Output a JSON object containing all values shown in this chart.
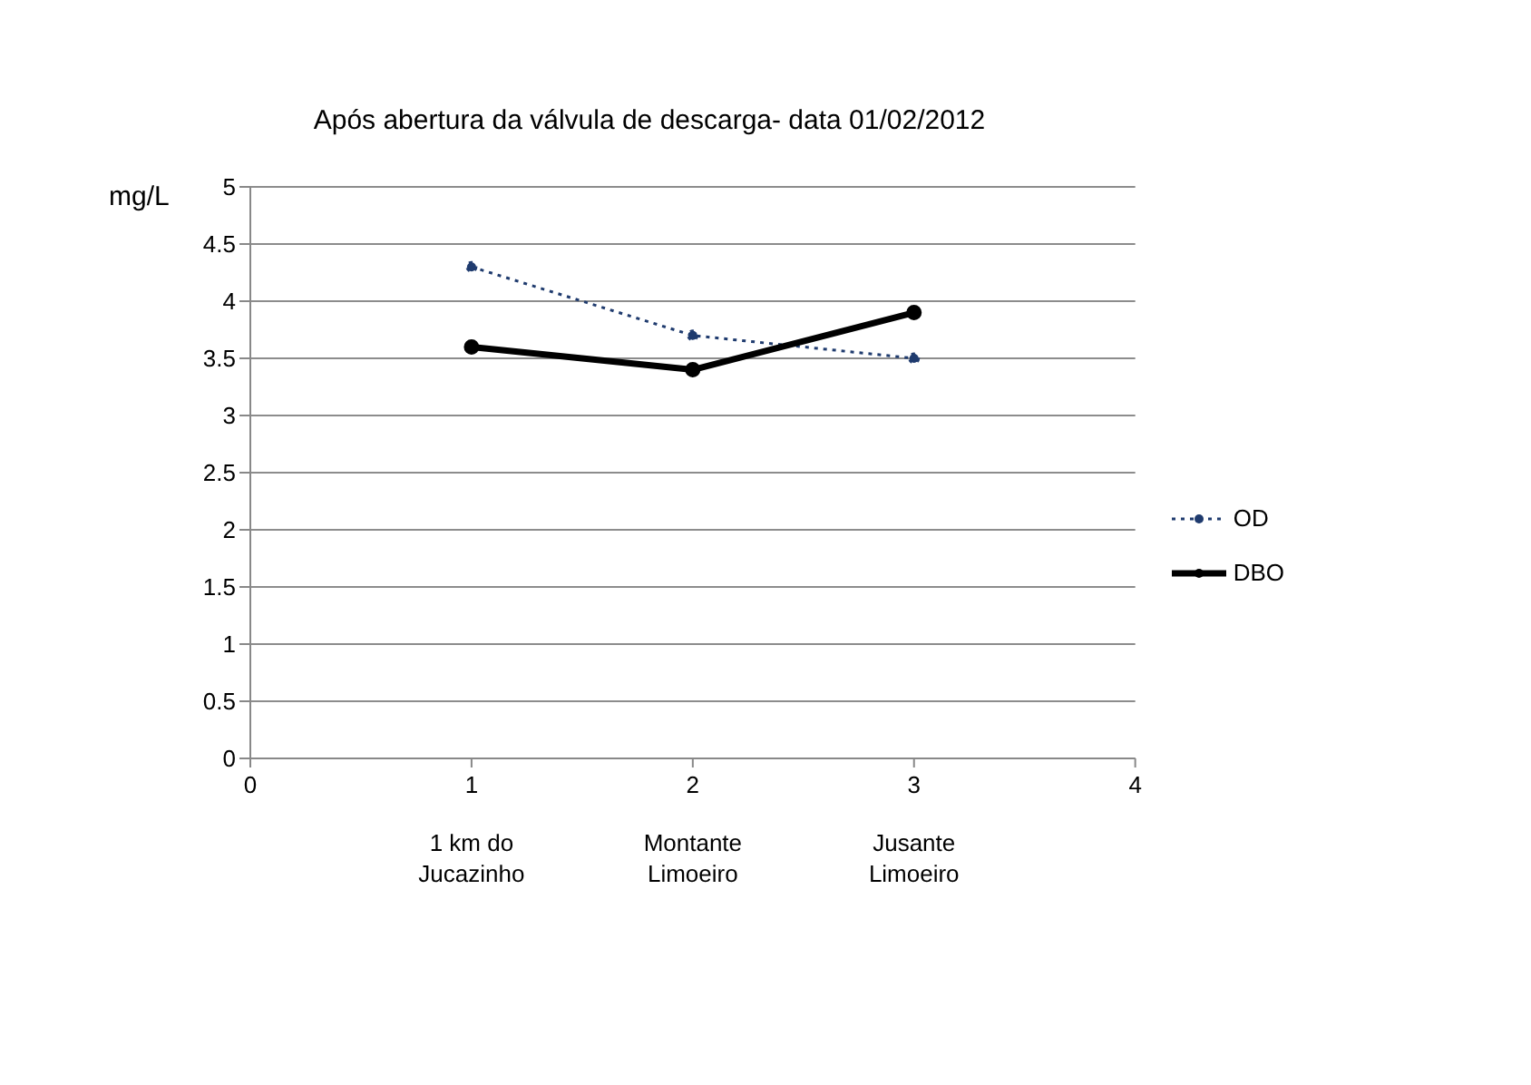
{
  "chart_data": {
    "type": "line",
    "title": "Após abertura da válvula de descarga- data 01/02/2012",
    "ylabel": "mg/L",
    "x": [
      1,
      2,
      3
    ],
    "series": [
      {
        "name": "OD",
        "color": "#1f3b6e",
        "values": [
          4.3,
          3.7,
          3.5
        ],
        "line_style": "dotted",
        "marker": "circle"
      },
      {
        "name": "DBO",
        "color": "#000000",
        "values": [
          3.6,
          3.4,
          3.9
        ],
        "line_style": "solid",
        "marker": "circle"
      }
    ],
    "xlim": [
      0,
      4
    ],
    "xticks": [
      0,
      1,
      2,
      3,
      4
    ],
    "ylim": [
      0,
      5
    ],
    "yticks": [
      0,
      0.5,
      1,
      1.5,
      2,
      2.5,
      3,
      3.5,
      4,
      4.5,
      5
    ],
    "grid": "y",
    "legend": "right",
    "annotations": [
      "1 km do Jucazinho",
      "Montante Limoeiro",
      "Jusante Limoeiro"
    ]
  }
}
